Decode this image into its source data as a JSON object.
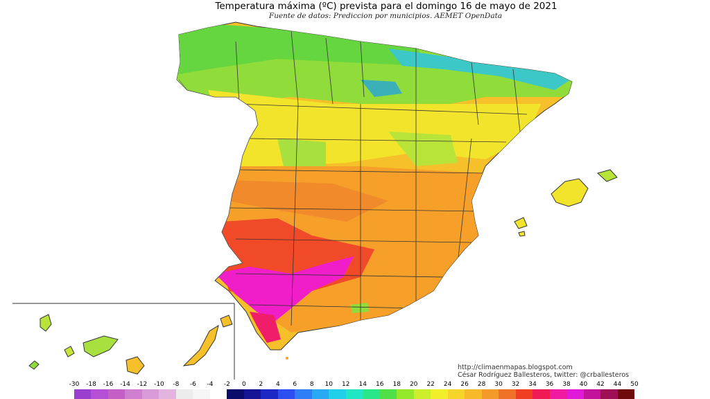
{
  "header": {
    "title": "Temperatura máxima (ºC) prevista para el domingo 16 de mayo de 2021",
    "subtitle": "Fuente de datos: Prediccion por municipios. AEMET OpenData"
  },
  "credits": {
    "blog": "http://climaenmapas.blogspot.com",
    "author": "César Rodríguez Ballesteros, twitter: @crballesteros"
  },
  "legend": {
    "ticks": [
      "-30",
      "-18",
      "-16",
      "-14",
      "-12",
      "-10",
      "-8",
      "-6",
      "-4",
      "-2",
      "0",
      "2",
      "4",
      "6",
      "8",
      "10",
      "12",
      "14",
      "16",
      "18",
      "20",
      "22",
      "24",
      "26",
      "28",
      "30",
      "32",
      "34",
      "36",
      "38",
      "40",
      "42",
      "44",
      "50"
    ],
    "colors": [
      "#7b2fc4",
      "#9a3fd0",
      "#b44fd6",
      "#c45fc8",
      "#cf7fd0",
      "#d99bd8",
      "#e2b4df",
      "#ececec",
      "#f5f5f5",
      "#ffffff",
      "#0b0b6b",
      "#141494",
      "#1c28c4",
      "#2d4ef0",
      "#2f7df7",
      "#29a9f4",
      "#1fd0e8",
      "#20e6c4",
      "#2ae68a",
      "#4fe049",
      "#94e82a",
      "#cdee2a",
      "#f2ee2a",
      "#f6d42a",
      "#f7b82a",
      "#f49a28",
      "#f07228",
      "#f03e22",
      "#f01a55",
      "#f01aa0",
      "#e01ad8",
      "#c4139a",
      "#9e0f55",
      "#6e0b0b"
    ]
  },
  "colors": {
    "cold_north": "#39d0d0",
    "green_north": "#6ddc3c",
    "yellow": "#f0e030",
    "orange": "#f6a22a",
    "red": "#f03a28",
    "magenta": "#f01ec8"
  }
}
